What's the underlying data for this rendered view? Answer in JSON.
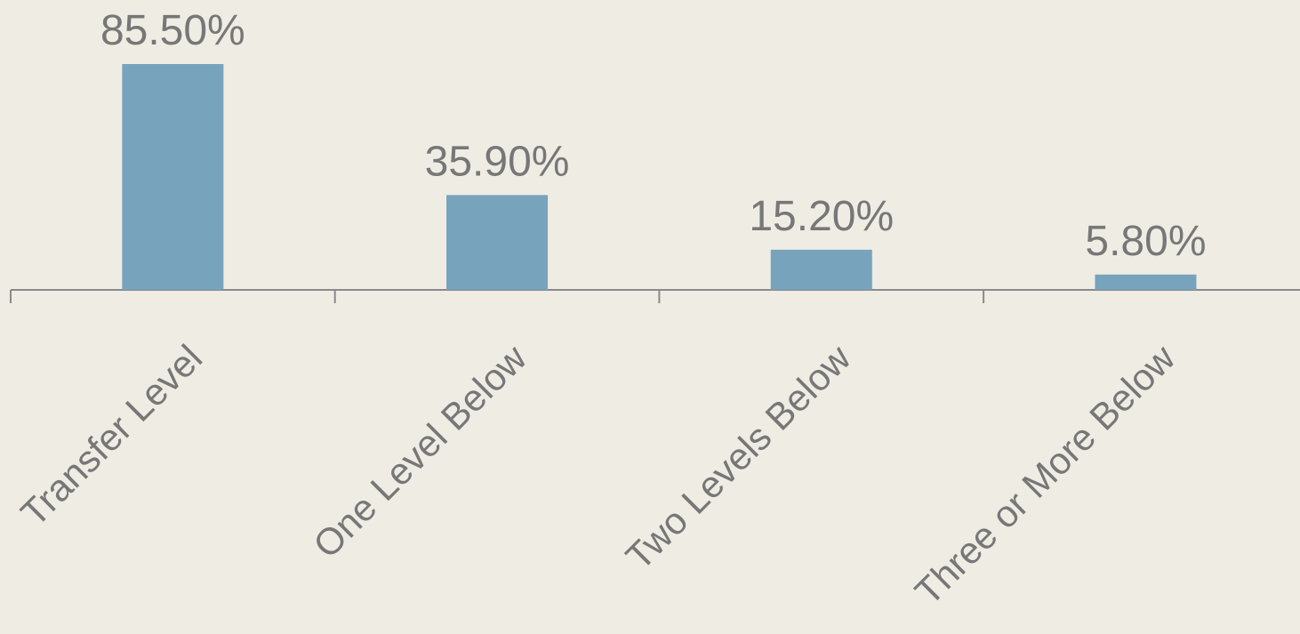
{
  "chart_data": {
    "type": "bar",
    "categories": [
      "Transfer Level",
      "One Level Below",
      "Two Levels Below",
      "Three or More Below"
    ],
    "values": [
      85.5,
      35.9,
      15.2,
      5.8
    ],
    "value_labels": [
      "85.50%",
      "35.90%",
      "15.20%",
      "5.80%"
    ],
    "color": "#77a3bc"
  }
}
